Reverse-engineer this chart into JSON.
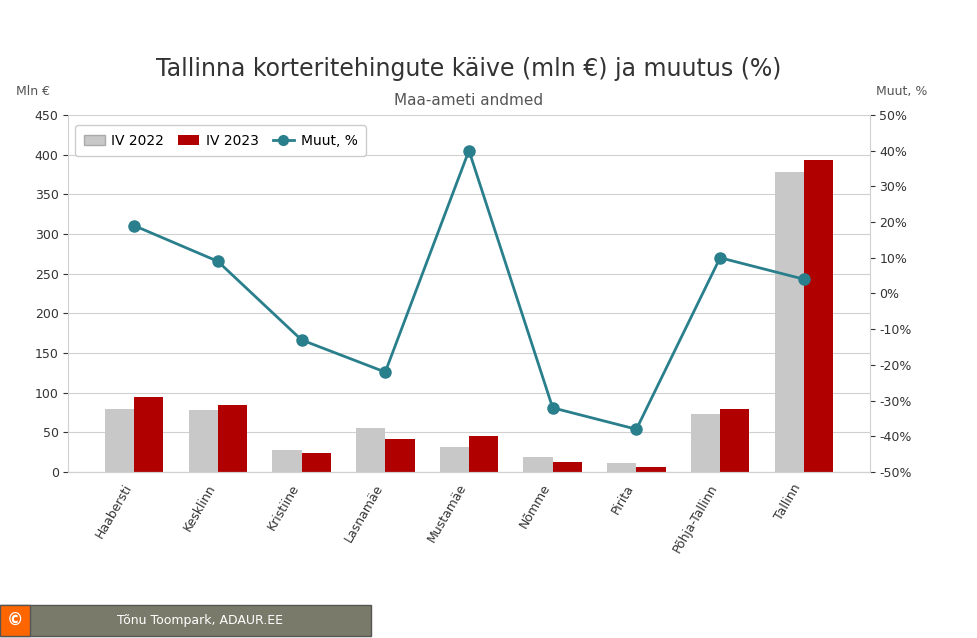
{
  "title": "Tallinna korteritehingute käive (mln €) ja muutus (%)",
  "subtitle": "Maa-ameti andmed",
  "label_left": "Mln €",
  "label_right": "Muut, %",
  "categories": [
    "Haabersti",
    "Kesklinn",
    "Kristiine",
    "Lasnamäe",
    "Mustamäe",
    "Nõmme",
    "Pirita",
    "Põhja-Tallinn",
    "Tallinn"
  ],
  "values_2022": [
    80,
    78,
    28,
    55,
    32,
    19,
    11,
    73,
    378
  ],
  "values_2023": [
    95,
    85,
    24,
    42,
    46,
    13,
    7,
    80,
    393
  ],
  "muut_pct": [
    19,
    9,
    -13,
    -22,
    40,
    -32,
    -38,
    10,
    4
  ],
  "color_2022": "#c8c8c8",
  "color_2023": "#b00000",
  "color_line": "#2a7f8c",
  "bar_width": 0.35,
  "ylim_left": [
    0,
    450
  ],
  "ylim_right": [
    -50,
    50
  ],
  "yticks_left": [
    0,
    50,
    100,
    150,
    200,
    250,
    300,
    350,
    400,
    450
  ],
  "yticks_right": [
    -50,
    -40,
    -30,
    -20,
    -10,
    0,
    10,
    20,
    30,
    40,
    50
  ],
  "legend_labels": [
    "IV 2022",
    "IV 2023",
    "Muut, %"
  ],
  "background_color": "#ffffff",
  "grid_color": "#d0d0d0",
  "title_fontsize": 17,
  "subtitle_fontsize": 11,
  "axis_label_fontsize": 9,
  "tick_fontsize": 9,
  "legend_fontsize": 10,
  "copyright_text": "© Tõnu Toompark, ADAUR.EE",
  "copyright_bg": "#7a7a6a",
  "copyright_icon_bg": "#ff6600"
}
